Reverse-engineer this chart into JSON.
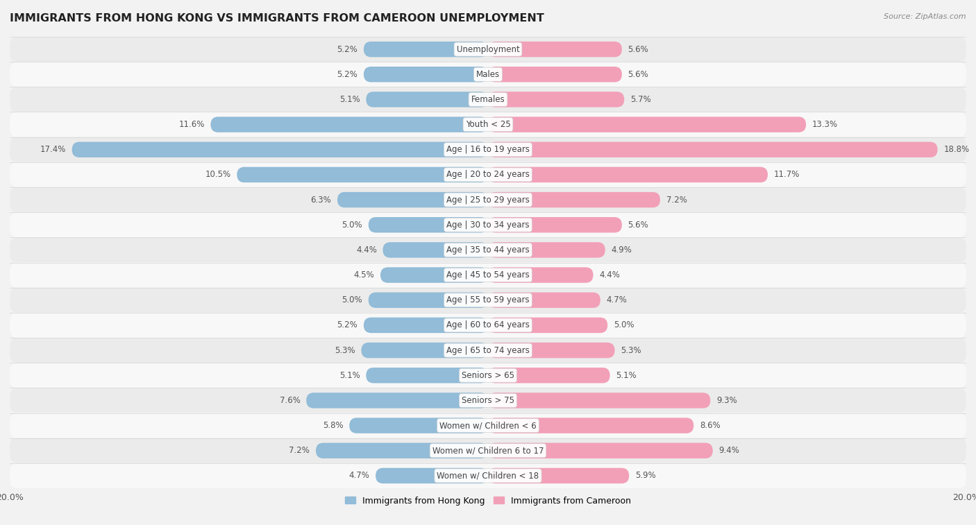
{
  "title": "IMMIGRANTS FROM HONG KONG VS IMMIGRANTS FROM CAMEROON UNEMPLOYMENT",
  "source": "Source: ZipAtlas.com",
  "categories": [
    "Unemployment",
    "Males",
    "Females",
    "Youth < 25",
    "Age | 16 to 19 years",
    "Age | 20 to 24 years",
    "Age | 25 to 29 years",
    "Age | 30 to 34 years",
    "Age | 35 to 44 years",
    "Age | 45 to 54 years",
    "Age | 55 to 59 years",
    "Age | 60 to 64 years",
    "Age | 65 to 74 years",
    "Seniors > 65",
    "Seniors > 75",
    "Women w/ Children < 6",
    "Women w/ Children 6 to 17",
    "Women w/ Children < 18"
  ],
  "hong_kong": [
    5.2,
    5.2,
    5.1,
    11.6,
    17.4,
    10.5,
    6.3,
    5.0,
    4.4,
    4.5,
    5.0,
    5.2,
    5.3,
    5.1,
    7.6,
    5.8,
    7.2,
    4.7
  ],
  "cameroon": [
    5.6,
    5.6,
    5.7,
    13.3,
    18.8,
    11.7,
    7.2,
    5.6,
    4.9,
    4.4,
    4.7,
    5.0,
    5.3,
    5.1,
    9.3,
    8.6,
    9.4,
    5.9
  ],
  "hk_color": "#92bcd8",
  "cam_color": "#f2a0b8",
  "hk_label": "Immigrants from Hong Kong",
  "cam_label": "Immigrants from Cameroon",
  "axis_max": 20.0,
  "bg_color": "#f2f2f2",
  "row_colors": [
    "#ebebeb",
    "#f8f8f8"
  ]
}
